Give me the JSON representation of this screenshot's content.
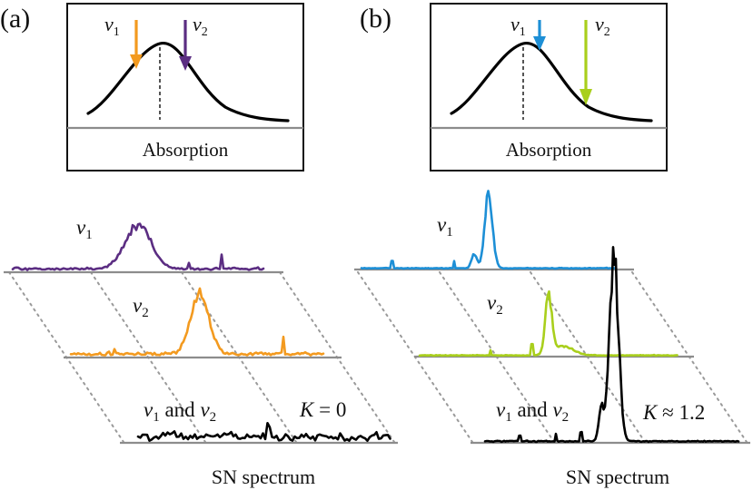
{
  "panel_a": {
    "tag": "(a)",
    "box_label": "Absorption",
    "arrow_labels": [
      {
        "sym": "v",
        "sub": "1"
      },
      {
        "sym": "v",
        "sub": "2"
      }
    ],
    "trace_labels": [
      {
        "sym": "v",
        "sub": "1"
      },
      {
        "sym": "v",
        "sub": "2"
      }
    ],
    "combined": {
      "sym1": "v",
      "sub1": "1",
      "and": " and ",
      "sym2": "v",
      "sub2": "2"
    },
    "k_label": {
      "sym": "K",
      "rel": " = 0"
    },
    "spectrum_label": "SN spectrum"
  },
  "panel_b": {
    "tag": "(b)",
    "box_label": "Absorption",
    "arrow_labels": [
      {
        "sym": "v",
        "sub": "1"
      },
      {
        "sym": "v",
        "sub": "2"
      }
    ],
    "trace_labels": [
      {
        "sym": "v",
        "sub": "1"
      },
      {
        "sym": "v",
        "sub": "2"
      }
    ],
    "combined": {
      "sym1": "v",
      "sub1": "1",
      "and": " and ",
      "sym2": "v",
      "sub2": "2"
    },
    "k_label": {
      "sym": "K",
      "rel": " ≈ 1.2"
    },
    "spectrum_label": "SN spectrum"
  },
  "colors": {
    "a_v1": "#5b2d82",
    "a_v2": "#f39a1f",
    "b_v1": "#1d8fd6",
    "b_v2": "#a9cf1c",
    "sum": "#000000"
  }
}
